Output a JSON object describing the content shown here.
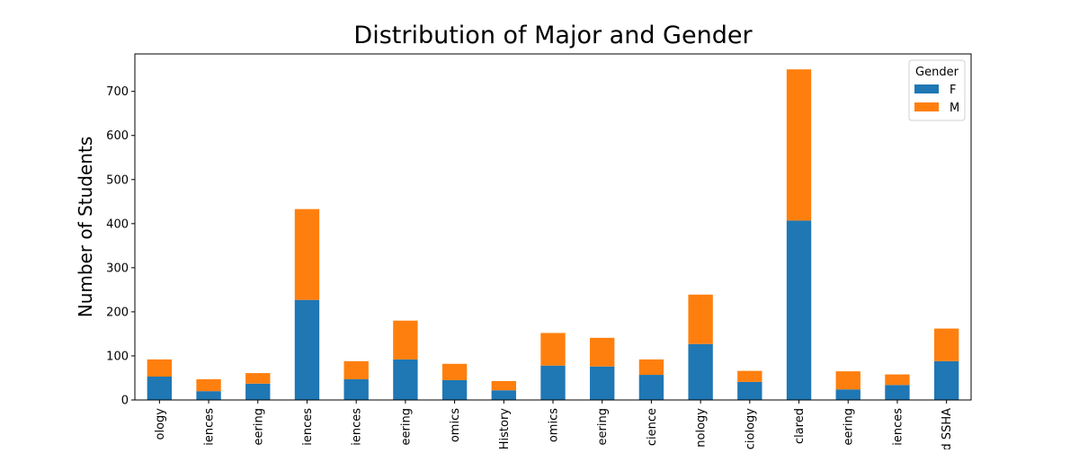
{
  "chart_data": {
    "type": "bar",
    "stacked": true,
    "title": "Distribution of Major and Gender",
    "xlabel": "",
    "ylabel": "Number of Students",
    "ylim": [
      0,
      785
    ],
    "yticks": [
      0,
      100,
      200,
      300,
      400,
      500,
      600,
      700
    ],
    "categories": [
      "ology",
      "iences",
      "eering",
      "iences",
      "iences",
      "eering",
      "omics",
      "History",
      "omics",
      "eering",
      "cience",
      "nology",
      "ciology",
      "clared",
      "eering",
      "iences",
      "d SSHA"
    ],
    "legend": {
      "title": "Gender",
      "position": "top-right"
    },
    "series": [
      {
        "name": "F",
        "color": "#1f77b4",
        "values": [
          53,
          20,
          37,
          227,
          47,
          92,
          45,
          22,
          78,
          76,
          57,
          127,
          41,
          407,
          24,
          34,
          88
        ]
      },
      {
        "name": "M",
        "color": "#ff7f0e",
        "values": [
          39,
          27,
          24,
          206,
          41,
          88,
          37,
          21,
          74,
          65,
          35,
          112,
          25,
          343,
          41,
          24,
          74
        ]
      }
    ]
  }
}
